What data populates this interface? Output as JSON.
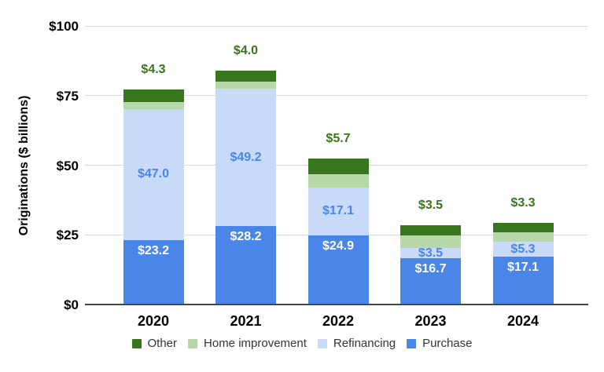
{
  "chart_data": {
    "type": "bar",
    "stacked": true,
    "title": "",
    "xlabel": "",
    "ylabel": "Originations ($ billions)",
    "ylim": [
      0,
      100
    ],
    "grid": true,
    "legend_position": "bottom",
    "categories": [
      "2020",
      "2021",
      "2022",
      "2023",
      "2024"
    ],
    "yticks": [
      {
        "value": 0,
        "label": "$0"
      },
      {
        "value": 25,
        "label": "$25"
      },
      {
        "value": 50,
        "label": "$50"
      },
      {
        "value": 75,
        "label": "$75"
      },
      {
        "value": 100,
        "label": "$100"
      }
    ],
    "series": [
      {
        "name": "Purchase",
        "color": "#4a86e8",
        "values": [
          23.2,
          28.2,
          24.9,
          16.7,
          17.1
        ],
        "labels": [
          "$23.2",
          "$28.2",
          "$24.9",
          "$16.7",
          "$17.1"
        ],
        "label_color": "#ffffff",
        "label_placement": "inside-top"
      },
      {
        "name": "Refinancing",
        "color": "#c9daf8",
        "values": [
          47.0,
          49.2,
          17.1,
          3.5,
          5.3
        ],
        "labels": [
          "$47.0",
          "$49.2",
          "$17.1",
          "$3.5",
          "$5.3"
        ],
        "label_color": "#4a86e8",
        "label_placement": "inside-center"
      },
      {
        "name": "Home improvement",
        "color": "#b6d7a8",
        "values": [
          2.6,
          2.6,
          4.8,
          4.7,
          3.6
        ],
        "estimated": true,
        "labels": [
          "",
          "",
          "",
          "",
          ""
        ],
        "label_color": "",
        "label_placement": "none"
      },
      {
        "name": "Other",
        "color": "#38761d",
        "values": [
          4.3,
          4.0,
          5.7,
          3.5,
          3.3
        ],
        "labels": [
          "$4.3",
          "$4.0",
          "$5.7",
          "$3.5",
          "$3.3"
        ],
        "label_color": "#38761d",
        "label_placement": "above-bar"
      }
    ],
    "legend": [
      "Other",
      "Home improvement",
      "Refinancing",
      "Purchase"
    ],
    "colors": {
      "axis_line": "#444444",
      "gridline": "#d9d9d9",
      "tick_label": "#000000",
      "legend_text": "#333333",
      "background": "#ffffff"
    }
  }
}
